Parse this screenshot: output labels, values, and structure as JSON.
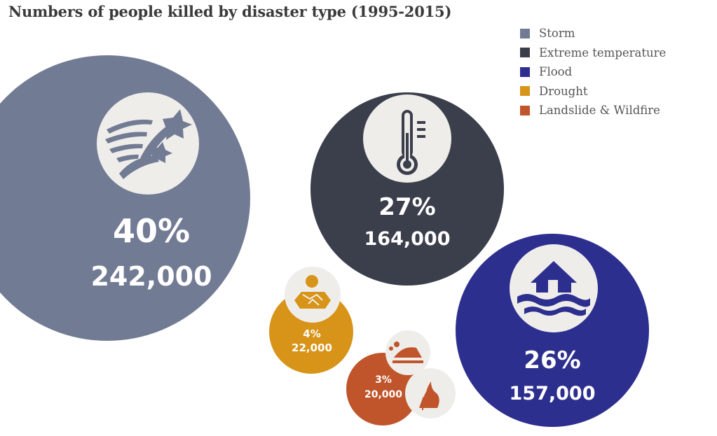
{
  "title": "Numbers of people killed by disaster type (1995-2015)",
  "chart_data": {
    "type": "bubble",
    "title": "Numbers of people killed by disaster type (1995-2015)",
    "legend_position": "top-right",
    "series": [
      {
        "name": "Storm",
        "percent_label": "40%",
        "count_label": "242,000",
        "percent": 40,
        "value": 242000,
        "color": "#727b94",
        "icon": "storm-icon"
      },
      {
        "name": "Extreme temperature",
        "percent_label": "27%",
        "count_label": "164,000",
        "percent": 27,
        "value": 164000,
        "color": "#3b3e4b",
        "icon": "thermometer-icon"
      },
      {
        "name": "Flood",
        "percent_label": "26%",
        "count_label": "157,000",
        "percent": 26,
        "value": 157000,
        "color": "#2d2f8f",
        "icon": "flooded-house-icon"
      },
      {
        "name": "Drought",
        "percent_label": "4%",
        "count_label": "22,000",
        "percent": 4,
        "value": 22000,
        "color": "#d89418",
        "icon": "cracked-earth-icon"
      },
      {
        "name": "Landslide & Wildfire",
        "percent_label": "3%",
        "count_label": "20,000",
        "percent": 3,
        "value": 20000,
        "color": "#c0552c",
        "icon": "landslide-wildfire-icon"
      }
    ]
  },
  "colors": {
    "icon_background": "#efedea",
    "text_on_bubble": "#ffffff"
  }
}
